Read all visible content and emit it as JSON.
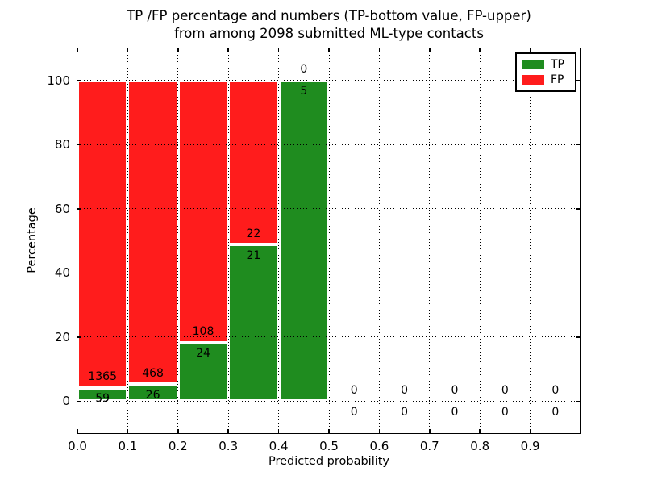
{
  "header": {
    "title_line1": "TP /FP percentage and numbers (TP-bottom value, FP-upper)",
    "title_line2": "from among 2098 submitted ML-type contacts"
  },
  "chart_data": {
    "type": "bar",
    "stacked": true,
    "orientation": "vertical",
    "title": "TP /FP percentage and numbers (TP-bottom value, FP-upper) from among 2098 submitted ML-type contacts",
    "xlabel": "Predicted probability",
    "ylabel": "Percentage",
    "xlim": [
      0,
      1.0
    ],
    "ylim": [
      -10,
      110
    ],
    "grid": {
      "style": "dotted",
      "color": "#000000"
    },
    "x_ticks": [
      {
        "value": 0.0,
        "label": "0.0"
      },
      {
        "value": 0.1,
        "label": "0.1"
      },
      {
        "value": 0.2,
        "label": "0.2"
      },
      {
        "value": 0.3,
        "label": "0.3"
      },
      {
        "value": 0.4,
        "label": "0.4"
      },
      {
        "value": 0.5,
        "label": "0.5"
      },
      {
        "value": 0.6,
        "label": "0.6"
      },
      {
        "value": 0.7,
        "label": "0.7"
      },
      {
        "value": 0.8,
        "label": "0.8"
      },
      {
        "value": 0.9,
        "label": "0.9"
      }
    ],
    "y_ticks": [
      {
        "value": 0,
        "label": "0"
      },
      {
        "value": 20,
        "label": "20"
      },
      {
        "value": 40,
        "label": "40"
      },
      {
        "value": 60,
        "label": "60"
      },
      {
        "value": 80,
        "label": "80"
      },
      {
        "value": 100,
        "label": "100"
      }
    ],
    "colors": {
      "tp": "#1f8c1f",
      "fp": "#ff1c1c"
    },
    "legend": {
      "position": "upper right",
      "entries": [
        {
          "label": "TP",
          "color": "#1f8c1f"
        },
        {
          "label": "FP",
          "color": "#ff1c1c"
        }
      ]
    },
    "series": [
      {
        "name": "TP",
        "counts": [
          59,
          26,
          24,
          21,
          5,
          0,
          0,
          0,
          0,
          0
        ]
      },
      {
        "name": "FP",
        "counts": [
          1365,
          468,
          108,
          22,
          0,
          0,
          0,
          0,
          0,
          0
        ]
      }
    ],
    "bins": [
      {
        "x0": 0.0,
        "x1": 0.1,
        "tp": 59,
        "fp": 1365,
        "tp_pct": 4.14,
        "fp_pct": 95.86
      },
      {
        "x0": 0.1,
        "x1": 0.2,
        "tp": 26,
        "fp": 468,
        "tp_pct": 5.26,
        "fp_pct": 94.74
      },
      {
        "x0": 0.2,
        "x1": 0.3,
        "tp": 24,
        "fp": 108,
        "tp_pct": 18.18,
        "fp_pct": 81.82
      },
      {
        "x0": 0.3,
        "x1": 0.4,
        "tp": 21,
        "fp": 22,
        "tp_pct": 48.84,
        "fp_pct": 51.16
      },
      {
        "x0": 0.4,
        "x1": 0.5,
        "tp": 5,
        "fp": 0,
        "tp_pct": 100,
        "fp_pct": 0
      },
      {
        "x0": 0.5,
        "x1": 0.6,
        "tp": 0,
        "fp": 0,
        "tp_pct": 0,
        "fp_pct": 0
      },
      {
        "x0": 0.6,
        "x1": 0.7,
        "tp": 0,
        "fp": 0,
        "tp_pct": 0,
        "fp_pct": 0
      },
      {
        "x0": 0.7,
        "x1": 0.8,
        "tp": 0,
        "fp": 0,
        "tp_pct": 0,
        "fp_pct": 0
      },
      {
        "x0": 0.8,
        "x1": 0.9,
        "tp": 0,
        "fp": 0,
        "tp_pct": 0,
        "fp_pct": 0
      },
      {
        "x0": 0.9,
        "x1": 1.0,
        "tp": 0,
        "fp": 0,
        "tp_pct": 0,
        "fp_pct": 0
      }
    ],
    "total_contacts": 2098
  }
}
